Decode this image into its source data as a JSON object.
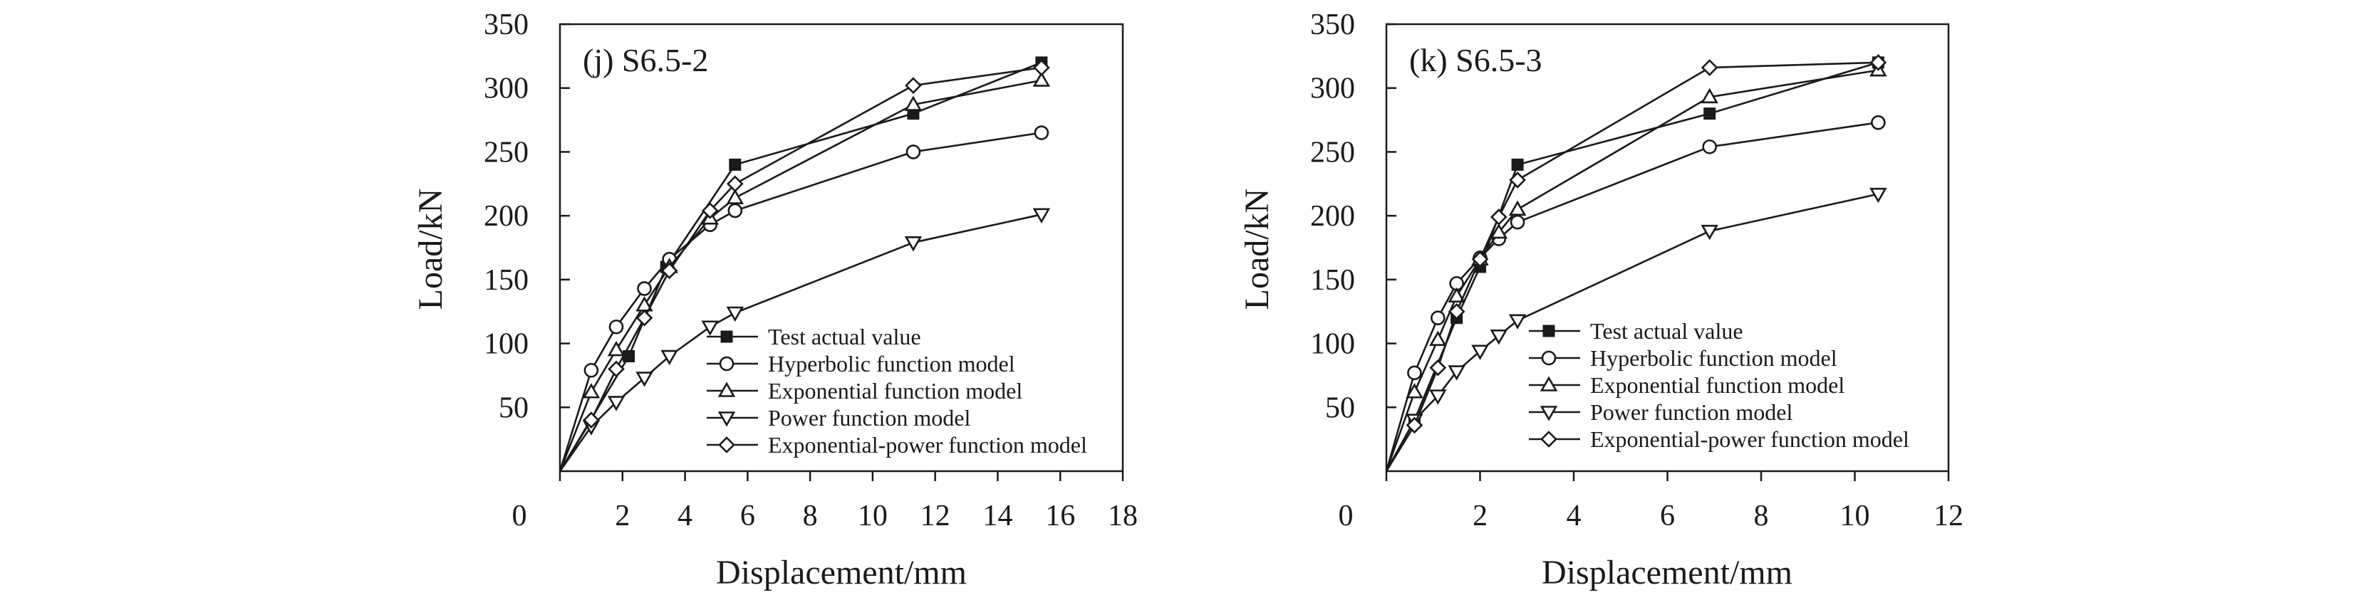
{
  "chart_data": [
    {
      "type": "line",
      "panel_label": "(j) S6.5-2",
      "xlabel": "Displacement/mm",
      "ylabel": "Load/kN",
      "xlim": [
        0,
        18
      ],
      "ylim": [
        0,
        350
      ],
      "xticks": [
        0,
        2,
        4,
        6,
        8,
        10,
        12,
        14,
        16,
        18
      ],
      "xtick_labels": [
        "0",
        "2",
        "4",
        "6",
        "8",
        "10",
        "12",
        "14",
        "16",
        "18"
      ],
      "yticks": [
        50,
        100,
        150,
        200,
        250,
        300,
        350
      ],
      "ytick_labels": [
        "50",
        "100",
        "150",
        "200",
        "250",
        "300",
        "350"
      ],
      "legend_position": "lower-right",
      "series": [
        {
          "name": "Test actual value",
          "marker": "filled-square",
          "points": [
            [
              0,
              0
            ],
            [
              2.2,
              90
            ],
            [
              3.4,
              160
            ],
            [
              5.6,
              240
            ],
            [
              11.3,
              280
            ],
            [
              15.4,
              320
            ]
          ]
        },
        {
          "name": "Hyperbolic function model",
          "marker": "circle",
          "points": [
            [
              0,
              0
            ],
            [
              1.0,
              79
            ],
            [
              1.8,
              113
            ],
            [
              2.7,
              143
            ],
            [
              3.5,
              166
            ],
            [
              4.8,
              193
            ],
            [
              5.6,
              204
            ],
            [
              11.3,
              250
            ],
            [
              15.4,
              265
            ]
          ]
        },
        {
          "name": "Exponential function model",
          "marker": "triangle-up",
          "points": [
            [
              0,
              0
            ],
            [
              1.0,
              62
            ],
            [
              1.8,
              95
            ],
            [
              2.7,
              130
            ],
            [
              3.5,
              160
            ],
            [
              4.8,
              198
            ],
            [
              5.6,
              214
            ],
            [
              11.3,
              287
            ],
            [
              15.4,
              306
            ]
          ]
        },
        {
          "name": "Power function model",
          "marker": "triangle-down",
          "points": [
            [
              0,
              0
            ],
            [
              1.0,
              35
            ],
            [
              1.8,
              54
            ],
            [
              2.7,
              73
            ],
            [
              3.5,
              90
            ],
            [
              4.8,
              113
            ],
            [
              5.6,
              124
            ],
            [
              11.3,
              179
            ],
            [
              15.4,
              201
            ]
          ]
        },
        {
          "name": "Exponential-power function model",
          "marker": "diamond",
          "points": [
            [
              0,
              0
            ],
            [
              1.0,
              40
            ],
            [
              1.8,
              80
            ],
            [
              2.7,
              120
            ],
            [
              3.5,
              157
            ],
            [
              4.8,
              204
            ],
            [
              5.6,
              225
            ],
            [
              11.3,
              302
            ],
            [
              15.4,
              316
            ]
          ]
        }
      ]
    },
    {
      "type": "line",
      "panel_label": "(k) S6.5-3",
      "xlabel": "Displacement/mm",
      "ylabel": "Load/kN",
      "xlim": [
        0,
        12
      ],
      "ylim": [
        0,
        350
      ],
      "xticks": [
        0,
        2,
        4,
        6,
        8,
        10,
        12
      ],
      "xtick_labels": [
        "0",
        "2",
        "4",
        "6",
        "8",
        "10",
        "12"
      ],
      "yticks": [
        50,
        100,
        150,
        200,
        250,
        300,
        350
      ],
      "ytick_labels": [
        "50",
        "100",
        "150",
        "200",
        "250",
        "300",
        "350"
      ],
      "legend_position": "lower-right",
      "series": [
        {
          "name": "Test actual value",
          "marker": "filled-square",
          "points": [
            [
              0,
              0
            ],
            [
              0.6,
              40
            ],
            [
              1.5,
              120
            ],
            [
              2.0,
              160
            ],
            [
              2.8,
              240
            ],
            [
              6.9,
              280
            ],
            [
              10.5,
              320
            ]
          ]
        },
        {
          "name": "Hyperbolic function model",
          "marker": "circle",
          "points": [
            [
              0,
              0
            ],
            [
              0.6,
              77
            ],
            [
              1.1,
              120
            ],
            [
              1.5,
              147
            ],
            [
              2.0,
              167
            ],
            [
              2.4,
              182
            ],
            [
              2.8,
              195
            ],
            [
              6.9,
              254
            ],
            [
              10.5,
              273
            ]
          ]
        },
        {
          "name": "Exponential function model",
          "marker": "triangle-up",
          "points": [
            [
              0,
              0
            ],
            [
              0.6,
              62
            ],
            [
              1.1,
              103
            ],
            [
              1.5,
              137
            ],
            [
              2.0,
              166
            ],
            [
              2.4,
              187
            ],
            [
              2.8,
              205
            ],
            [
              6.9,
              293
            ],
            [
              10.5,
              314
            ]
          ]
        },
        {
          "name": "Power function model",
          "marker": "triangle-down",
          "points": [
            [
              0,
              0
            ],
            [
              0.6,
              40
            ],
            [
              1.1,
              59
            ],
            [
              1.5,
              78
            ],
            [
              2.0,
              94
            ],
            [
              2.4,
              106
            ],
            [
              2.8,
              118
            ],
            [
              6.9,
              188
            ],
            [
              10.5,
              217
            ]
          ]
        },
        {
          "name": "Exponential-power function model",
          "marker": "diamond",
          "points": [
            [
              0,
              0
            ],
            [
              0.6,
              36
            ],
            [
              1.1,
              81
            ],
            [
              1.5,
              125
            ],
            [
              2.0,
              166
            ],
            [
              2.4,
              199
            ],
            [
              2.8,
              228
            ],
            [
              6.9,
              316
            ],
            [
              10.5,
              320
            ]
          ]
        }
      ]
    }
  ]
}
